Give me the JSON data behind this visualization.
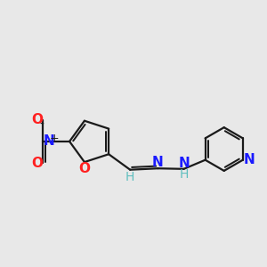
{
  "bg_color": "#e8e8e8",
  "bond_color": "#1a1a1a",
  "N_color": "#1a1aff",
  "O_color": "#ff2020",
  "H_color": "#5fbfbf",
  "lw": 1.6,
  "figsize": [
    3.0,
    3.0
  ],
  "dpi": 100,
  "xlim": [
    0.0,
    10.0
  ],
  "ylim": [
    2.5,
    8.5
  ]
}
